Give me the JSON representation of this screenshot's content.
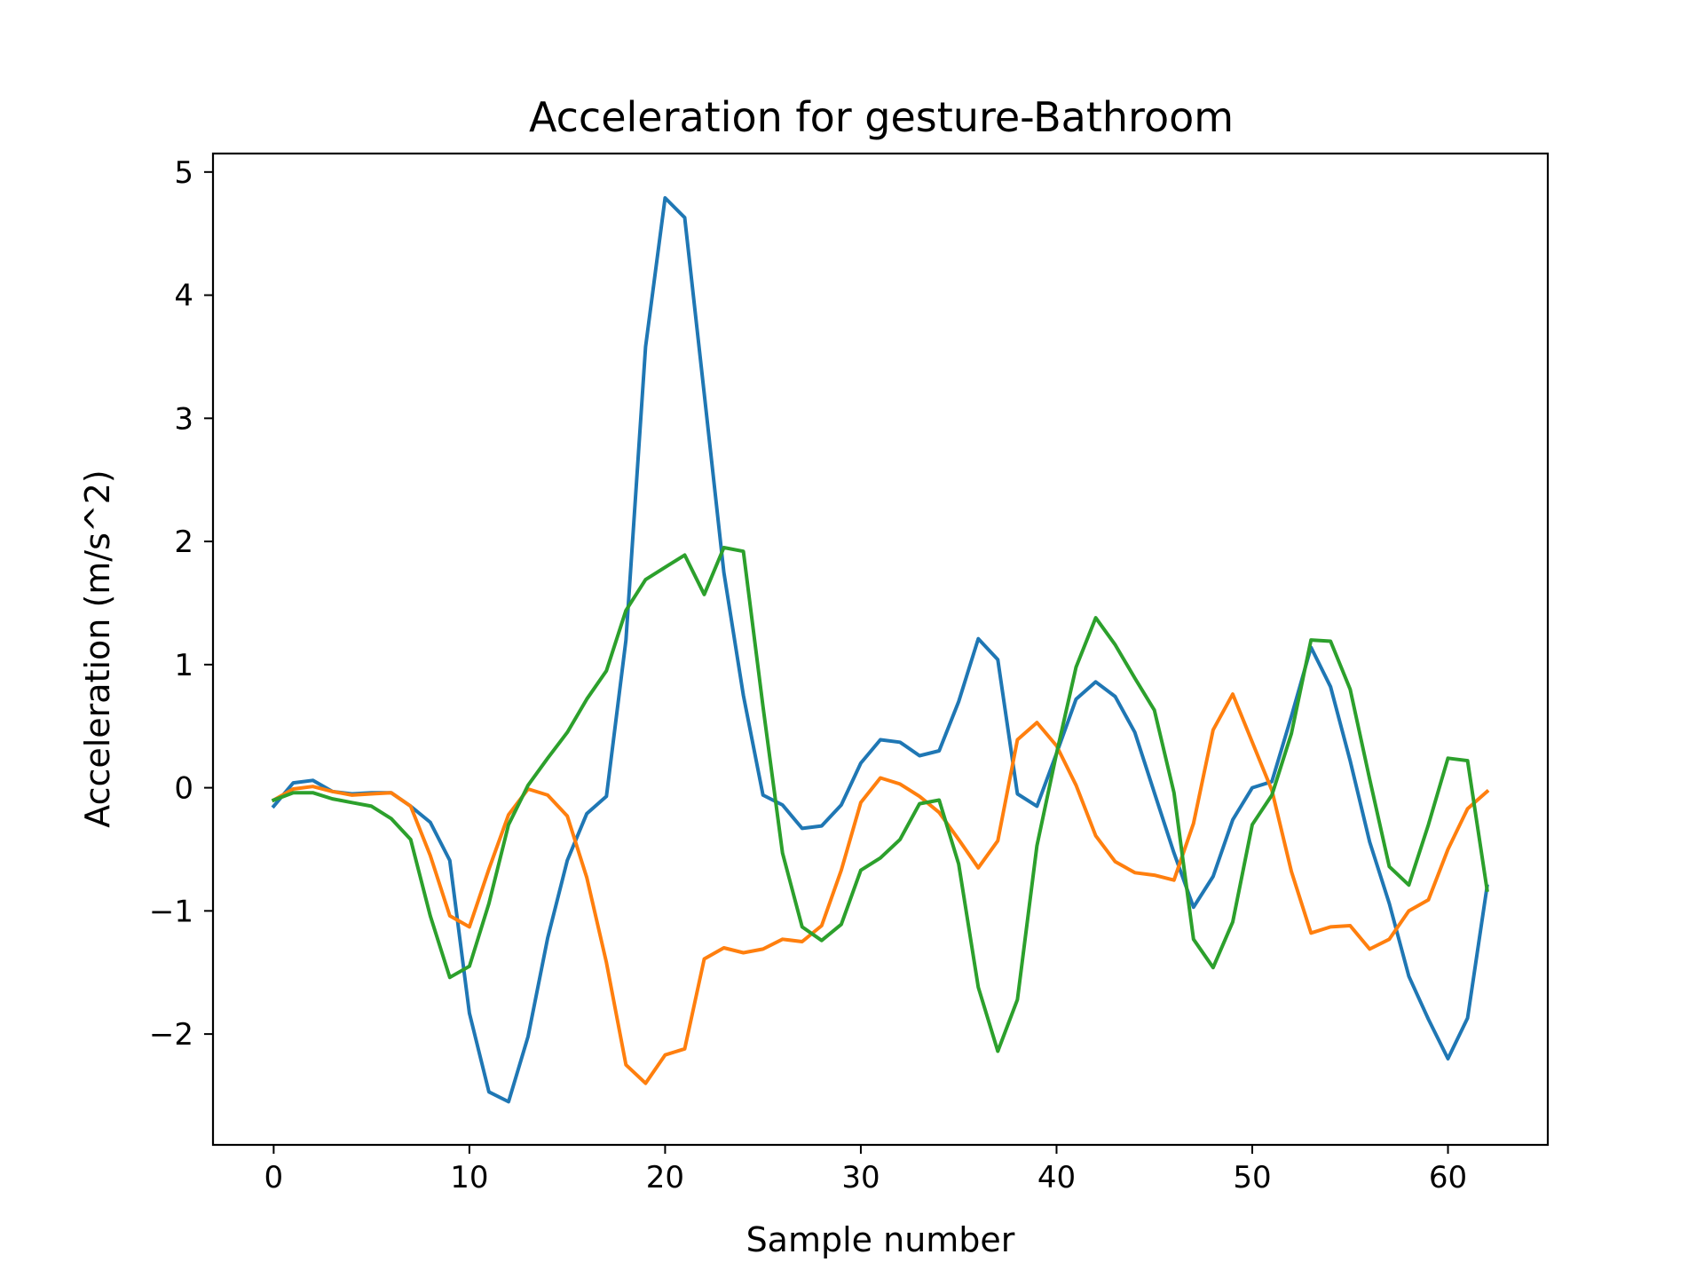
{
  "chart_data": {
    "type": "line",
    "title": "Acceleration for gesture-Bathroom",
    "xlabel": "Sample number",
    "ylabel": "Acceleration (m/s^2)",
    "xlim": [
      -3.1,
      65.1
    ],
    "ylim": [
      -2.9,
      5.15
    ],
    "xticks": [
      0,
      10,
      20,
      30,
      40,
      50,
      60
    ],
    "xtick_labels": [
      "0",
      "10",
      "20",
      "30",
      "40",
      "50",
      "60"
    ],
    "yticks": [
      -2,
      -1,
      0,
      1,
      2,
      3,
      4,
      5
    ],
    "ytick_labels": [
      "−2",
      "−1",
      "0",
      "1",
      "2",
      "3",
      "4",
      "5"
    ],
    "grid": false,
    "legend": "none",
    "x": [
      0,
      1,
      2,
      3,
      4,
      5,
      6,
      7,
      8,
      9,
      10,
      11,
      12,
      13,
      14,
      15,
      16,
      17,
      18,
      19,
      20,
      21,
      22,
      23,
      24,
      25,
      26,
      27,
      28,
      29,
      30,
      31,
      32,
      33,
      34,
      35,
      36,
      37,
      38,
      39,
      40,
      41,
      42,
      43,
      44,
      45,
      46,
      47,
      48,
      49,
      50,
      51,
      52,
      53,
      54,
      55,
      56,
      57,
      58,
      59,
      60,
      61,
      62
    ],
    "series": [
      {
        "color": "#1f77b4",
        "values": [
          -0.15,
          0.04,
          0.06,
          -0.03,
          -0.05,
          -0.04,
          -0.04,
          -0.15,
          -0.28,
          -0.59,
          -1.83,
          -2.47,
          -2.55,
          -2.02,
          -1.22,
          -0.59,
          -0.21,
          -0.07,
          1.2,
          3.58,
          4.79,
          4.63,
          3.2,
          1.75,
          0.75,
          -0.06,
          -0.14,
          -0.33,
          -0.31,
          -0.14,
          0.2,
          0.39,
          0.37,
          0.26,
          0.3,
          0.7,
          1.21,
          1.04,
          -0.05,
          -0.15,
          0.28,
          0.72,
          0.86,
          0.74,
          0.45,
          -0.04,
          -0.53,
          -0.97,
          -0.72,
          -0.26,
          0.0,
          0.05,
          0.58,
          1.14,
          0.82,
          0.22,
          -0.44,
          -0.94,
          -1.53,
          -1.88,
          -2.2,
          -1.87,
          -0.8
        ]
      },
      {
        "color": "#ff7f0e",
        "values": [
          -0.1,
          -0.01,
          0.01,
          -0.03,
          -0.06,
          -0.05,
          -0.04,
          -0.15,
          -0.55,
          -1.04,
          -1.13,
          -0.66,
          -0.22,
          -0.01,
          -0.06,
          -0.23,
          -0.73,
          -1.42,
          -2.25,
          -2.4,
          -2.17,
          -2.12,
          -1.39,
          -1.3,
          -1.34,
          -1.31,
          -1.23,
          -1.25,
          -1.12,
          -0.67,
          -0.12,
          0.08,
          0.03,
          -0.07,
          -0.2,
          -0.42,
          -0.65,
          -0.43,
          0.39,
          0.53,
          0.34,
          0.02,
          -0.39,
          -0.6,
          -0.69,
          -0.71,
          -0.75,
          -0.29,
          0.47,
          0.76,
          0.37,
          -0.02,
          -0.68,
          -1.18,
          -1.13,
          -1.12,
          -1.31,
          -1.23,
          -1.0,
          -0.91,
          -0.5,
          -0.17,
          -0.03
        ]
      },
      {
        "color": "#2ca02c",
        "values": [
          -0.1,
          -0.04,
          -0.04,
          -0.09,
          -0.12,
          -0.15,
          -0.25,
          -0.42,
          -1.04,
          -1.54,
          -1.45,
          -0.94,
          -0.3,
          0.02,
          0.24,
          0.45,
          0.72,
          0.95,
          1.44,
          1.69,
          1.79,
          1.89,
          1.57,
          1.95,
          1.92,
          0.66,
          -0.53,
          -1.13,
          -1.24,
          -1.11,
          -0.67,
          -0.57,
          -0.42,
          -0.13,
          -0.1,
          -0.62,
          -1.62,
          -2.14,
          -1.72,
          -0.47,
          0.28,
          0.98,
          1.38,
          1.16,
          0.89,
          0.63,
          -0.04,
          -1.23,
          -1.46,
          -1.09,
          -0.3,
          -0.06,
          0.44,
          1.2,
          1.19,
          0.8,
          0.07,
          -0.64,
          -0.79,
          -0.3,
          0.24,
          0.22,
          -0.83
        ]
      }
    ]
  }
}
